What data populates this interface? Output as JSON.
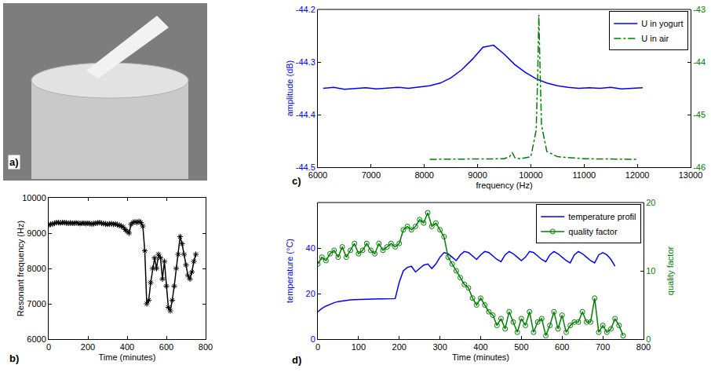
{
  "chart_data": [
    {
      "type": "image",
      "panel_label": "a)"
    },
    {
      "type": "line",
      "panel_label": "b)",
      "x_label": "Time (minutes)",
      "y_label": "Resonant frequency (Hz)",
      "x": [
        0,
        10,
        20,
        30,
        40,
        50,
        60,
        70,
        80,
        90,
        100,
        110,
        120,
        130,
        140,
        150,
        160,
        170,
        180,
        190,
        200,
        210,
        220,
        230,
        240,
        250,
        260,
        270,
        280,
        290,
        300,
        310,
        320,
        330,
        340,
        350,
        360,
        370,
        380,
        390,
        400,
        410,
        420,
        430,
        440,
        450,
        460,
        470,
        480,
        490,
        500,
        510,
        520,
        530,
        540,
        550,
        560,
        570,
        580,
        590,
        600,
        610,
        620,
        630,
        640,
        650,
        660,
        670,
        680,
        690,
        700,
        710,
        720,
        730,
        740,
        750
      ],
      "series": [
        {
          "color": "#000000",
          "marker": "asterisk",
          "line_style": "solid",
          "values": [
            9230,
            9250,
            9260,
            9280,
            9300,
            9300,
            9290,
            9300,
            9300,
            9290,
            9280,
            9290,
            9280,
            9280,
            9290,
            9280,
            9270,
            9280,
            9280,
            9270,
            9280,
            9270,
            9260,
            9270,
            9280,
            9290,
            9300,
            9280,
            9270,
            9260,
            9250,
            9260,
            9270,
            9250,
            9260,
            9240,
            9220,
            9200,
            9170,
            9100,
            9050,
            9000,
            9250,
            9300,
            9320,
            9300,
            9330,
            9300,
            9200,
            8500,
            7000,
            7100,
            7600,
            8000,
            8300,
            8000,
            8400,
            8300,
            7700,
            8200,
            7500,
            6900,
            6800,
            7100,
            7500,
            8000,
            8400,
            8900,
            8700,
            8400,
            8100,
            7800,
            7700,
            7900,
            8200,
            8400
          ]
        }
      ],
      "xlim": [
        0,
        800
      ],
      "xticks": [
        0,
        200,
        400,
        600,
        800
      ],
      "ylim": [
        6000,
        10000
      ],
      "yticks": [
        6000,
        7000,
        8000,
        9000,
        10000
      ]
    },
    {
      "type": "line",
      "panel_label": "c)",
      "x_label": "frequency (Hz)",
      "y_label": "amplitude (dB)",
      "legend": "upper right",
      "series": [
        {
          "name": "U in yogurt",
          "color": "#0000ff",
          "line_style": "solid",
          "x": [
            6100,
            6300,
            6500,
            6700,
            6900,
            7100,
            7300,
            7500,
            7700,
            7900,
            8100,
            8300,
            8500,
            8700,
            8900,
            9100,
            9300,
            9500,
            9700,
            9900,
            10100,
            10300,
            10500,
            10700,
            10900,
            11100,
            11300,
            11500,
            11700,
            11900,
            12100
          ],
          "values": [
            -44.35,
            -44.348,
            -44.352,
            -44.35,
            -44.349,
            -44.351,
            -44.35,
            -44.348,
            -44.35,
            -44.347,
            -44.345,
            -44.34,
            -44.33,
            -44.315,
            -44.295,
            -44.272,
            -44.268,
            -44.285,
            -44.305,
            -44.32,
            -44.332,
            -44.34,
            -44.345,
            -44.348,
            -44.35,
            -44.349,
            -44.35,
            -44.348,
            -44.351,
            -44.35,
            -44.349
          ]
        },
        {
          "name": "U in air",
          "color": "#008000",
          "line_style": "dashdot",
          "axis": "y2",
          "x": [
            8100,
            8500,
            9000,
            9500,
            9600,
            9650,
            9700,
            9800,
            10000,
            10100,
            10130,
            10150,
            10170,
            10200,
            10300,
            10500,
            11000,
            11500,
            12000
          ],
          "values": [
            -45.85,
            -45.85,
            -45.85,
            -45.84,
            -45.8,
            -45.72,
            -45.82,
            -45.84,
            -45.8,
            -45.3,
            -44.2,
            -43.1,
            -44.0,
            -45.2,
            -45.7,
            -45.8,
            -45.84,
            -45.85,
            -45.85
          ]
        }
      ],
      "xlim": [
        6000,
        13000
      ],
      "xticks": [
        6000,
        7000,
        8000,
        9000,
        10000,
        11000,
        12000,
        13000
      ],
      "ylim": [
        -44.5,
        -44.2
      ],
      "yticks": [
        -44.5,
        -44.4,
        -44.3,
        -44.2
      ],
      "y2lim": [
        -46,
        -43
      ],
      "y2ticks": [
        -46,
        -45,
        -44,
        -43
      ]
    },
    {
      "type": "line",
      "panel_label": "d)",
      "x_label": "Time (minutes)",
      "y_label": "temperature (°C)",
      "y2_label": "quality factor",
      "legend": "upper right",
      "series": [
        {
          "name": "temperature profil",
          "color": "#0000ff",
          "line_style": "solid",
          "x": [
            0,
            10,
            20,
            30,
            40,
            50,
            60,
            70,
            80,
            90,
            100,
            110,
            120,
            130,
            140,
            150,
            160,
            170,
            180,
            190,
            200,
            210,
            220,
            230,
            240,
            250,
            260,
            270,
            280,
            290,
            300,
            310,
            320,
            330,
            340,
            350,
            360,
            370,
            380,
            390,
            400,
            410,
            420,
            430,
            440,
            450,
            460,
            470,
            480,
            490,
            500,
            510,
            520,
            530,
            540,
            550,
            560,
            570,
            580,
            590,
            600,
            610,
            620,
            630,
            640,
            650,
            660,
            670,
            680,
            690,
            700,
            710,
            720,
            730
          ],
          "values": [
            12,
            13.5,
            14.5,
            15.3,
            16,
            16.5,
            16.8,
            17,
            17.2,
            17.3,
            17.4,
            17.5,
            17.5,
            17.6,
            17.6,
            17.7,
            17.7,
            17.7,
            17.8,
            17.8,
            25,
            30,
            31.5,
            32,
            29.5,
            31,
            32.5,
            33,
            31,
            33,
            36,
            38,
            37.5,
            36,
            34.5,
            37,
            38.5,
            38,
            36.5,
            35,
            37,
            38.5,
            38,
            36.5,
            35,
            34,
            37,
            38.5,
            37.5,
            36,
            34.5,
            36,
            38.5,
            38,
            36.5,
            35,
            34,
            37,
            38.5,
            37.5,
            36,
            34.5,
            33.5,
            37,
            38.5,
            37.5,
            36,
            34.5,
            33.5,
            37,
            38,
            37,
            35,
            32
          ]
        },
        {
          "name": "quality factor",
          "color": "#008000",
          "line_style": "solid",
          "marker": "circle",
          "axis": "y2",
          "x": [
            0,
            10,
            20,
            30,
            40,
            50,
            60,
            70,
            80,
            90,
            100,
            110,
            120,
            130,
            140,
            150,
            160,
            170,
            180,
            190,
            200,
            210,
            220,
            230,
            240,
            250,
            260,
            270,
            280,
            290,
            300,
            310,
            320,
            330,
            340,
            350,
            360,
            370,
            380,
            390,
            400,
            410,
            420,
            430,
            440,
            450,
            460,
            470,
            480,
            490,
            500,
            510,
            520,
            530,
            540,
            550,
            560,
            570,
            580,
            590,
            600,
            610,
            620,
            630,
            640,
            650,
            660,
            670,
            680,
            690,
            700,
            710,
            720,
            730,
            740,
            750
          ],
          "values": [
            11,
            12,
            11.5,
            12.5,
            13,
            12,
            13.5,
            12,
            13,
            14,
            12.5,
            13,
            14,
            13,
            12.5,
            14,
            13,
            13.5,
            14,
            13.5,
            14,
            16,
            16.5,
            16,
            16.5,
            17.5,
            17,
            18.5,
            16.5,
            17,
            16,
            15,
            12,
            11,
            10,
            9,
            8,
            7.5,
            6,
            5,
            6,
            5,
            4,
            3.5,
            2,
            3,
            1.5,
            4,
            2.5,
            1,
            3,
            2,
            4,
            1,
            2.5,
            3,
            0.5,
            2,
            4,
            1.5,
            3.5,
            1,
            2,
            2.5,
            2.5,
            4,
            2.5,
            2.5,
            6,
            1,
            2,
            1,
            1.5,
            3,
            2,
            0.5
          ]
        }
      ],
      "xlim": [
        0,
        800
      ],
      "xticks": [
        0,
        100,
        200,
        300,
        400,
        500,
        600,
        700,
        800
      ],
      "ylim": [
        0,
        60
      ],
      "yticks": [
        0,
        20,
        40
      ],
      "y2lim": [
        0,
        20
      ],
      "y2ticks": [
        0,
        10,
        20
      ]
    }
  ]
}
